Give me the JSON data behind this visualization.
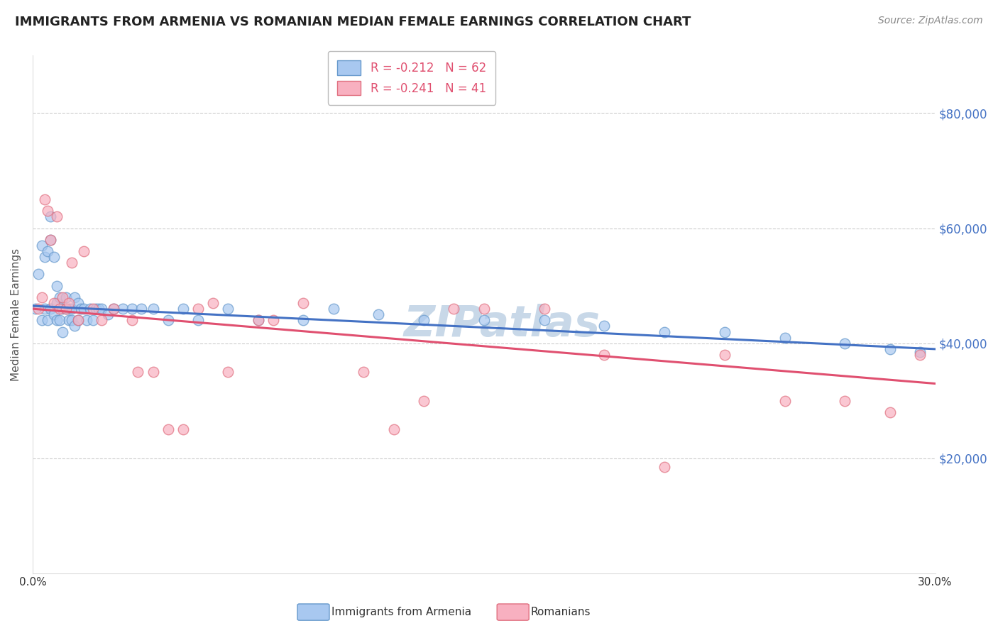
{
  "title": "IMMIGRANTS FROM ARMENIA VS ROMANIAN MEDIAN FEMALE EARNINGS CORRELATION CHART",
  "source": "Source: ZipAtlas.com",
  "ylabel": "Median Female Earnings",
  "yticks": [
    20000,
    40000,
    60000,
    80000
  ],
  "ytick_labels": [
    "$20,000",
    "$40,000",
    "$60,000",
    "$80,000"
  ],
  "background_color": "#ffffff",
  "watermark": "ZIPatlas",
  "legend_R_armenia": "-0.212",
  "legend_N_armenia": "62",
  "legend_R_romania": "-0.241",
  "legend_N_romania": "41",
  "armenia_x": [
    0.001,
    0.002,
    0.003,
    0.003,
    0.004,
    0.004,
    0.005,
    0.005,
    0.006,
    0.006,
    0.006,
    0.007,
    0.007,
    0.008,
    0.008,
    0.008,
    0.009,
    0.009,
    0.01,
    0.01,
    0.011,
    0.011,
    0.012,
    0.012,
    0.013,
    0.013,
    0.014,
    0.014,
    0.015,
    0.015,
    0.016,
    0.017,
    0.018,
    0.019,
    0.02,
    0.021,
    0.022,
    0.023,
    0.025,
    0.027,
    0.03,
    0.033,
    0.036,
    0.04,
    0.045,
    0.05,
    0.055,
    0.065,
    0.075,
    0.09,
    0.1,
    0.115,
    0.13,
    0.15,
    0.17,
    0.19,
    0.21,
    0.23,
    0.25,
    0.27,
    0.285,
    0.295
  ],
  "armenia_y": [
    46000,
    52000,
    57000,
    44000,
    55000,
    46000,
    56000,
    44000,
    62000,
    58000,
    46000,
    55000,
    45000,
    47000,
    50000,
    44000,
    48000,
    44000,
    46000,
    42000,
    48000,
    46000,
    46000,
    44000,
    46000,
    44000,
    48000,
    43000,
    47000,
    44000,
    46000,
    46000,
    44000,
    46000,
    44000,
    46000,
    46000,
    46000,
    45000,
    46000,
    46000,
    46000,
    46000,
    46000,
    44000,
    46000,
    44000,
    46000,
    44000,
    44000,
    46000,
    45000,
    44000,
    44000,
    44000,
    43000,
    42000,
    42000,
    41000,
    40000,
    39000,
    38500
  ],
  "romania_x": [
    0.002,
    0.003,
    0.004,
    0.005,
    0.006,
    0.007,
    0.008,
    0.009,
    0.01,
    0.011,
    0.012,
    0.013,
    0.015,
    0.017,
    0.02,
    0.023,
    0.027,
    0.033,
    0.04,
    0.05,
    0.06,
    0.075,
    0.09,
    0.11,
    0.13,
    0.15,
    0.17,
    0.19,
    0.21,
    0.23,
    0.25,
    0.27,
    0.285,
    0.295,
    0.12,
    0.14,
    0.08,
    0.065,
    0.055,
    0.045,
    0.035
  ],
  "romania_y": [
    46000,
    48000,
    65000,
    63000,
    58000,
    47000,
    62000,
    46000,
    48000,
    46000,
    47000,
    54000,
    44000,
    56000,
    46000,
    44000,
    46000,
    44000,
    35000,
    25000,
    47000,
    44000,
    47000,
    35000,
    30000,
    46000,
    46000,
    38000,
    18500,
    38000,
    30000,
    30000,
    28000,
    38000,
    25000,
    46000,
    44000,
    35000,
    46000,
    25000,
    35000
  ],
  "armenia_line_x": [
    0.0,
    0.3
  ],
  "armenia_line_y": [
    46500,
    39000
  ],
  "romania_line_x": [
    0.0,
    0.3
  ],
  "romania_line_y": [
    46000,
    33000
  ],
  "xlim": [
    0.0,
    0.3
  ],
  "ylim": [
    0,
    90000
  ],
  "scatter_size": 110,
  "armenia_scatter_color": "#a8c8f0",
  "armenia_edge_color": "#6699cc",
  "romania_scatter_color": "#f8b0c0",
  "romania_edge_color": "#e07080",
  "trendline_armenia_color": "#4472c4",
  "trendline_romania_color": "#e05070",
  "grid_color": "#cccccc",
  "ytick_color": "#4472c4",
  "title_fontsize": 13,
  "ylabel_fontsize": 11,
  "source_fontsize": 10,
  "watermark_fontsize": 44,
  "watermark_color": "#c8d8e8",
  "legend_fontsize": 12,
  "legend_color_R": "#e05070",
  "legend_color_N": "#4472c4"
}
